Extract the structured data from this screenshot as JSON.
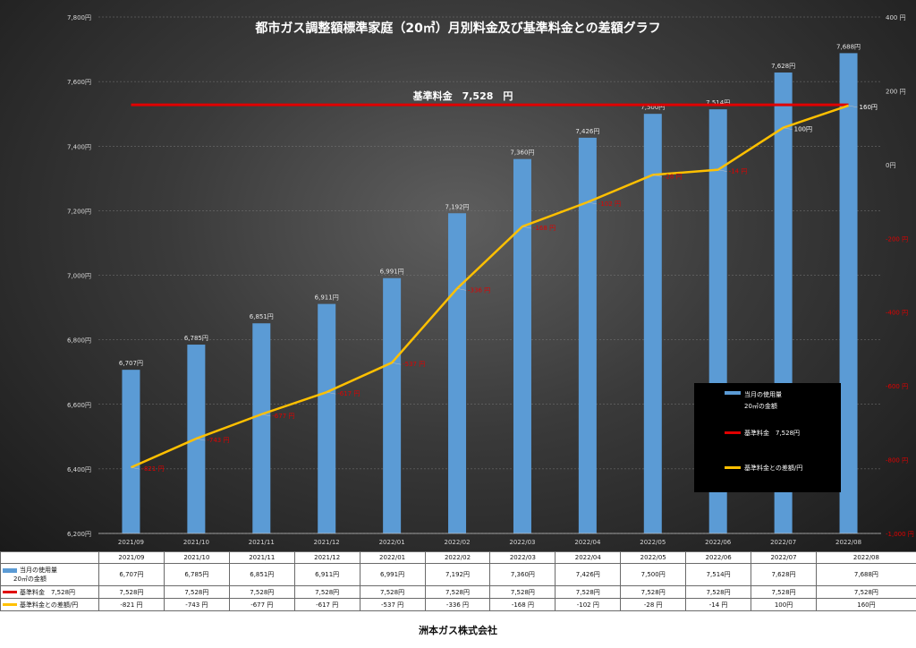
{
  "chart_data": {
    "type": "bar+line",
    "title": "都市ガス調整額標準家庭（20㎥）月別料金及び基準料金との差額グラフ",
    "categories": [
      "2021/09",
      "2021/10",
      "2021/11",
      "2021/12",
      "2022/01",
      "2022/02",
      "2022/03",
      "2022/04",
      "2022/05",
      "2022/06",
      "2022/07",
      "2022/08"
    ],
    "bar_series": {
      "name": "当月の使用量\n20㎥の金額",
      "values": [
        6707,
        6785,
        6851,
        6911,
        6991,
        7192,
        7360,
        7426,
        7500,
        7514,
        7628,
        7688
      ],
      "labels": [
        "6,707円",
        "6,785円",
        "6,851円",
        "6,911円",
        "6,991円",
        "7,192円",
        "7,360円",
        "7,426円",
        "7,500円",
        "7,514円",
        "7,628円",
        "7,688円"
      ],
      "color": "#5b9bd5"
    },
    "reference_series": {
      "name": "基準料金　7,528円",
      "value": 7528,
      "annotation": "基準料金　7,528　円",
      "color": "#e00000"
    },
    "diff_series": {
      "name": "基準料金との差額/円",
      "values": [
        -821,
        -743,
        -677,
        -617,
        -537,
        -336,
        -168,
        -102,
        -28,
        -14,
        100,
        160
      ],
      "labels": [
        "-821 円",
        "-743 円",
        "-677 円",
        "-617 円",
        "-537 円",
        "-336 円",
        "-168 円",
        "-102 円",
        "-28 円",
        "-14 円",
        "100円",
        "160円"
      ],
      "color": "#ffc000"
    },
    "y_left": {
      "range": [
        6200,
        7800
      ],
      "ticks": [
        "6,200円",
        "6,400円",
        "6,600円",
        "6,800円",
        "7,000円",
        "7,200円",
        "7,400円",
        "7,600円",
        "7,800円"
      ]
    },
    "y_right": {
      "range": [
        -1000,
        400
      ],
      "ticks": [
        "-1,000 円",
        "-800 円",
        "-600 円",
        "-400 円",
        "-200 円",
        "0円",
        "200 円",
        "400 円"
      ]
    },
    "legend_position": "right"
  },
  "table": {
    "header": [
      "2021/09",
      "2021/10",
      "2021/11",
      "2021/12",
      "2022/01",
      "2022/02",
      "2022/03",
      "2022/04",
      "2022/05",
      "2022/06",
      "2022/07",
      "2022/08"
    ],
    "rows": [
      {
        "label_line1": "当月の使用量",
        "label_line2": "20㎥の金額",
        "color": "#5b9bd5",
        "cells": [
          "6,707円",
          "6,785円",
          "6,851円",
          "6,911円",
          "6,991円",
          "7,192円",
          "7,360円",
          "7,426円",
          "7,500円",
          "7,514円",
          "7,628円",
          "7,688円"
        ]
      },
      {
        "label": "基準料金　7,528円",
        "color": "#e00000",
        "cells": [
          "7,528円",
          "7,528円",
          "7,528円",
          "7,528円",
          "7,528円",
          "7,528円",
          "7,528円",
          "7,528円",
          "7,528円",
          "7,528円",
          "7,528円",
          "7,528円"
        ]
      },
      {
        "label": "基準料金との差額/円",
        "color": "#ffc000",
        "cells": [
          "-821 円",
          "-743 円",
          "-677 円",
          "-617 円",
          "-537 円",
          "-336 円",
          "-168 円",
          "-102 円",
          "-28 円",
          "-14 円",
          "100円",
          "160円"
        ]
      }
    ]
  },
  "footer": "洲本ガス株式会社"
}
